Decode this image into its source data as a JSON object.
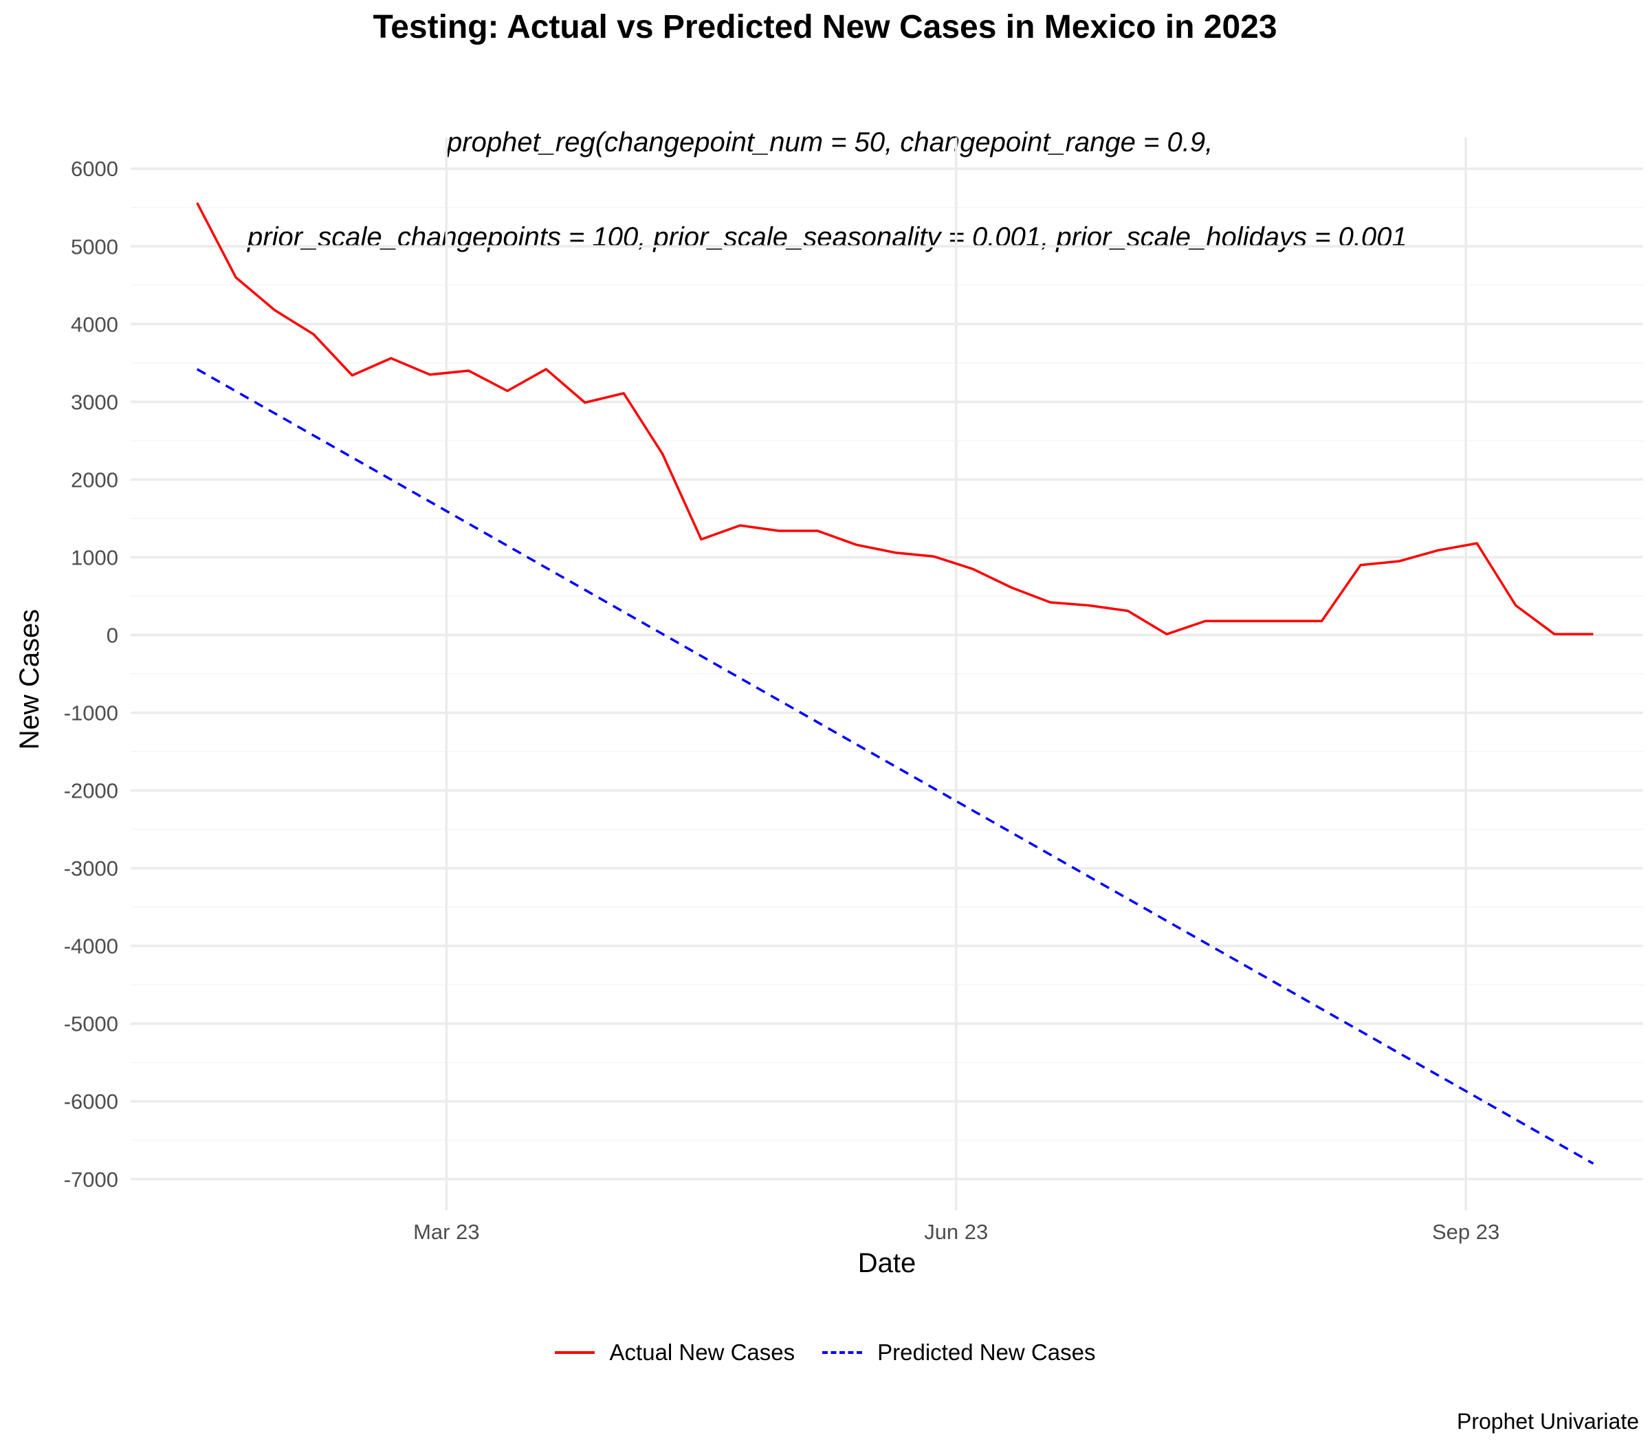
{
  "chart_data": {
    "type": "line",
    "title": "Testing: Actual vs Predicted New Cases in Mexico in 2023",
    "subtitle_lines": [
      "prophet_reg(changepoint_num = 50, changepoint_range = 0.9,",
      "prior_scale_changepoints = 100, prior_scale_seasonality = 0.001, prior_scale_holidays = 0.001"
    ],
    "xlabel": "Date",
    "ylabel": "New Cases",
    "caption": "Prophet Univariate",
    "xlim": [
      "2023-01-03",
      "2023-10-03"
    ],
    "ylim": [
      -7400,
      6400
    ],
    "x_ticks": [
      {
        "date": "2023-03-01",
        "label": "Mar 23"
      },
      {
        "date": "2023-06-01",
        "label": "Jun 23"
      },
      {
        "date": "2023-09-01",
        "label": "Sep 23"
      }
    ],
    "y_ticks": [
      6000,
      5000,
      4000,
      3000,
      2000,
      1000,
      0,
      -1000,
      -2000,
      -3000,
      -4000,
      -5000,
      -6000,
      -7000
    ],
    "grid": true,
    "legend_position": "bottom",
    "series": [
      {
        "name": "Actual New Cases",
        "color": "#ff0000",
        "dash": "solid",
        "x": [
          "2023-01-15",
          "2023-01-22",
          "2023-01-29",
          "2023-02-05",
          "2023-02-12",
          "2023-02-19",
          "2023-02-26",
          "2023-03-05",
          "2023-03-12",
          "2023-03-19",
          "2023-03-26",
          "2023-04-02",
          "2023-04-09",
          "2023-04-16",
          "2023-04-23",
          "2023-04-30",
          "2023-05-07",
          "2023-05-14",
          "2023-05-21",
          "2023-05-28",
          "2023-06-04",
          "2023-06-11",
          "2023-06-18",
          "2023-06-25",
          "2023-07-02",
          "2023-07-09",
          "2023-07-16",
          "2023-07-23",
          "2023-07-30",
          "2023-08-06",
          "2023-08-13",
          "2023-08-20",
          "2023-08-27",
          "2023-09-03",
          "2023-09-10",
          "2023-09-17",
          "2023-09-24"
        ],
        "values": [
          5560,
          4600,
          4180,
          3870,
          3340,
          3560,
          3350,
          3400,
          3140,
          3420,
          2990,
          3110,
          2330,
          1230,
          1410,
          1340,
          1340,
          1160,
          1060,
          1010,
          850,
          610,
          420,
          380,
          310,
          10,
          180,
          180,
          180,
          180,
          900,
          950,
          1090,
          1180,
          380,
          10,
          10
        ]
      },
      {
        "name": "Predicted New Cases",
        "color": "#0000ff",
        "dash": "dashed",
        "x": [
          "2023-01-15",
          "2023-09-24"
        ],
        "values": [
          3420,
          -6800
        ]
      }
    ]
  }
}
